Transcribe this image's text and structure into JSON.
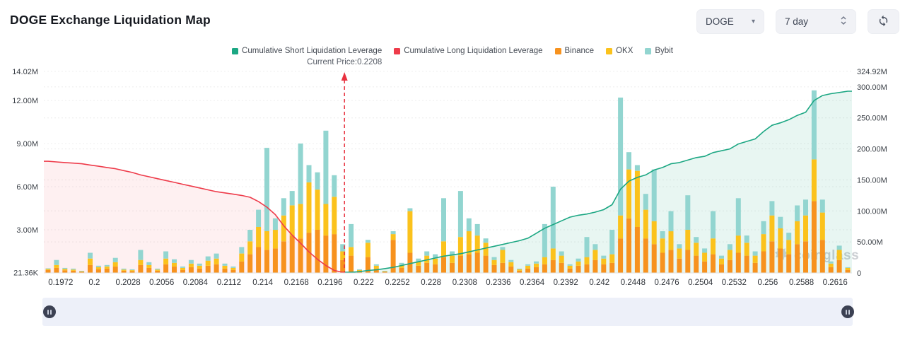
{
  "header": {
    "title": "DOGE Exchange Liquidation Map",
    "controls": {
      "symbol": "DOGE",
      "period": "7 day"
    }
  },
  "legend": {
    "items": [
      {
        "label": "Cumulative Short Liquidation Leverage",
        "color": "#1ca783"
      },
      {
        "label": "Cumulative Long Liquidation Leverage",
        "color": "#ee3b4a"
      },
      {
        "label": "Binance",
        "color": "#f7921e"
      },
      {
        "label": "OKX",
        "color": "#fbc21c"
      },
      {
        "label": "Bybit",
        "color": "#92d5d0"
      }
    ]
  },
  "current_price": {
    "label": "Current Price:0.2208",
    "value": 0.2208
  },
  "watermark": "coinglass",
  "chart_data": {
    "type": "bar",
    "subtype": "stacked-bars-with-cumulative-area-lines",
    "unit": "M (millions USD)",
    "grid": "dashed-horizontal",
    "legend_position": "top-center",
    "x_tick_labels": [
      "0.1972",
      "0.2",
      "0.2028",
      "0.2056",
      "0.2084",
      "0.2112",
      "0.214",
      "0.2168",
      "0.2196",
      "0.222",
      "0.2252",
      "0.228",
      "0.2308",
      "0.2336",
      "0.2364",
      "0.2392",
      "0.242",
      "0.2448",
      "0.2476",
      "0.2504",
      "0.2532",
      "0.256",
      "0.2588",
      "0.2616"
    ],
    "bars_per_tick": 4,
    "left_axis": {
      "applies_to": "bars",
      "ticks": [
        {
          "label": "14.02M",
          "value": 14.02
        },
        {
          "label": "12.00M",
          "value": 12
        },
        {
          "label": "9.00M",
          "value": 9
        },
        {
          "label": "6.00M",
          "value": 6
        },
        {
          "label": "3.00M",
          "value": 3
        },
        {
          "label": "21.36K",
          "value": 0.02136
        }
      ]
    },
    "right_axis": {
      "applies_to": "lines",
      "ticks": [
        {
          "label": "324.92M",
          "value": 324.92
        },
        {
          "label": "300.00M",
          "value": 300
        },
        {
          "label": "250.00M",
          "value": 250
        },
        {
          "label": "200.00M",
          "value": 200
        },
        {
          "label": "150.00M",
          "value": 150
        },
        {
          "label": "100.00M",
          "value": 100
        },
        {
          "label": "50.00M",
          "value": 50
        },
        {
          "label": "0",
          "value": 0
        }
      ]
    },
    "series": [
      {
        "name": "Binance",
        "type": "bar",
        "color": "#f7921e",
        "values": [
          0.2,
          0.35,
          0.18,
          0.15,
          0.08,
          0.55,
          0.25,
          0.3,
          0.45,
          0.15,
          0.12,
          0.55,
          0.35,
          0.15,
          0.6,
          0.45,
          0.2,
          0.4,
          0.3,
          0.5,
          0.6,
          0.3,
          0.2,
          0.8,
          1.3,
          1.8,
          1.6,
          1.7,
          2.2,
          2.6,
          2.4,
          2.8,
          3.0,
          2.6,
          2.7,
          0.9,
          1.2,
          0.12,
          1.1,
          0.3,
          0.08,
          2.3,
          0.35,
          1.4,
          0.5,
          0.7,
          0.6,
          1.1,
          0.7,
          1.2,
          1.3,
          1.4,
          1.2,
          0.55,
          0.7,
          0.45,
          0.15,
          0.3,
          0.4,
          0.6,
          0.9,
          0.7,
          0.3,
          0.5,
          0.6,
          0.9,
          0.6,
          0.7,
          2.4,
          3.8,
          3.2,
          2.4,
          2.0,
          1.4,
          1.6,
          1.0,
          1.6,
          1.2,
          0.8,
          1.3,
          0.6,
          0.9,
          1.4,
          1.2,
          0.7,
          1.5,
          2.2,
          1.7,
          1.3,
          2.0,
          2.2,
          5.0,
          2.3,
          0.4,
          0.9,
          0.2
        ]
      },
      {
        "name": "OKX",
        "type": "bar",
        "color": "#fbc21c",
        "values": [
          0.07,
          0.2,
          0.1,
          0.08,
          0.04,
          0.45,
          0.15,
          0.15,
          0.3,
          0.08,
          0.07,
          0.35,
          0.2,
          0.08,
          0.4,
          0.25,
          0.15,
          0.25,
          0.2,
          0.35,
          0.4,
          0.2,
          0.15,
          0.55,
          0.9,
          1.4,
          1.3,
          1.3,
          1.8,
          2.1,
          2.4,
          3.5,
          2.8,
          2.2,
          2.6,
          0.6,
          0.6,
          0.08,
          1.0,
          0.2,
          0.05,
          0.4,
          0.2,
          2.9,
          0.3,
          0.5,
          0.4,
          1.1,
          0.5,
          1.3,
          1.6,
          1.2,
          0.9,
          0.35,
          0.9,
          0.3,
          0.1,
          0.2,
          0.25,
          0.5,
          0.8,
          0.5,
          0.2,
          0.3,
          0.5,
          0.7,
          0.4,
          0.6,
          1.6,
          3.4,
          3.9,
          2.0,
          1.6,
          1.0,
          1.3,
          0.7,
          1.4,
          0.9,
          0.6,
          1.1,
          0.4,
          0.7,
          1.2,
          0.9,
          0.5,
          1.2,
          1.8,
          1.4,
          1.0,
          1.6,
          1.8,
          2.9,
          1.9,
          0.25,
          0.7,
          0.15
        ]
      },
      {
        "name": "Bybit",
        "type": "bar",
        "color": "#92d5d0",
        "values": [
          0.05,
          0.35,
          0.07,
          0.07,
          0.03,
          0.4,
          0.1,
          0.1,
          0.3,
          0.07,
          0.06,
          0.7,
          0.2,
          0.07,
          0.5,
          0.25,
          0.1,
          0.25,
          0.15,
          0.3,
          0.35,
          0.15,
          0.1,
          0.45,
          0.8,
          1.2,
          5.8,
          0.8,
          1.2,
          1.0,
          4.2,
          1.2,
          1.2,
          5.1,
          1.5,
          0.5,
          1.6,
          0.05,
          0.2,
          0.1,
          0.02,
          0.2,
          0.15,
          0.2,
          0.2,
          0.3,
          0.3,
          3.0,
          0.3,
          3.2,
          0.9,
          0.8,
          0.3,
          0.2,
          0.2,
          0.15,
          0.05,
          0.1,
          0.15,
          2.3,
          4.3,
          0.3,
          0.1,
          0.2,
          1.4,
          0.4,
          0.2,
          1.7,
          8.2,
          1.2,
          0.4,
          1.1,
          3.6,
          0.5,
          1.4,
          0.3,
          2.4,
          0.4,
          0.3,
          1.9,
          0.2,
          0.4,
          2.6,
          0.5,
          0.3,
          0.9,
          1.0,
          0.8,
          0.5,
          1.1,
          1.1,
          4.8,
          0.9,
          0.15,
          0.3,
          0.05
        ]
      },
      {
        "name": "Cumulative Long Liquidation Leverage",
        "type": "line",
        "axis": "right",
        "color": "#ee3b4a",
        "fill": "rgba(238,59,74,0.08)",
        "start_index": 0,
        "line_values": [
          180,
          179,
          178,
          177,
          176,
          174,
          172,
          170,
          168,
          165,
          162,
          158,
          155,
          152,
          149,
          146,
          143,
          140,
          137,
          134,
          131,
          129,
          127,
          125,
          122,
          115,
          106,
          94,
          76,
          61,
          48,
          34,
          22,
          12,
          4,
          1
        ]
      },
      {
        "name": "Cumulative Short Liquidation Leverage",
        "type": "line",
        "axis": "right",
        "color": "#1ca783",
        "fill": "rgba(28,167,131,0.10)",
        "start_index": 36,
        "line_values": [
          1,
          2,
          4,
          5,
          7,
          9,
          12,
          15,
          18,
          21,
          24,
          27,
          29,
          31,
          34,
          37,
          40,
          43,
          46,
          49,
          52,
          56,
          64,
          72,
          78,
          84,
          90,
          93,
          95,
          98,
          102,
          110,
          135,
          148,
          154,
          158,
          166,
          170,
          176,
          178,
          182,
          186,
          188,
          194,
          197,
          200,
          208,
          212,
          216,
          228,
          238,
          242,
          247,
          254,
          259,
          278,
          286,
          289,
          291,
          293
        ]
      }
    ],
    "current_price_line": {
      "style": "red-dashed-vertical-arrow-up",
      "price": 0.2208
    }
  }
}
